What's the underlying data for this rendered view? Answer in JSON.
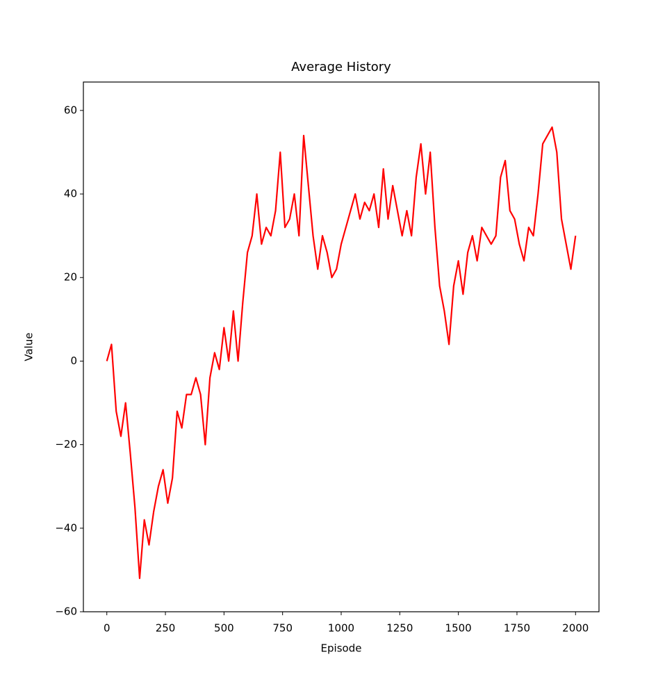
{
  "chart_data": {
    "type": "line",
    "title": "Average History",
    "x_label": "Episode",
    "y_label": "Value",
    "color": "#ff0000",
    "x": [
      0,
      20,
      40,
      60,
      80,
      100,
      120,
      140,
      160,
      180,
      200,
      220,
      240,
      260,
      280,
      300,
      320,
      340,
      360,
      380,
      400,
      420,
      440,
      460,
      480,
      500,
      520,
      540,
      560,
      580,
      600,
      620,
      640,
      660,
      680,
      700,
      720,
      740,
      760,
      780,
      800,
      820,
      840,
      860,
      880,
      900,
      920,
      940,
      960,
      980,
      1000,
      1020,
      1040,
      1060,
      1080,
      1100,
      1120,
      1140,
      1160,
      1180,
      1200,
      1220,
      1240,
      1260,
      1280,
      1300,
      1320,
      1340,
      1360,
      1380,
      1400,
      1420,
      1440,
      1460,
      1480,
      1500,
      1520,
      1540,
      1560,
      1580,
      1600,
      1620,
      1640,
      1660,
      1680,
      1700,
      1720,
      1740,
      1760,
      1780,
      1800,
      1820,
      1840,
      1860,
      1880,
      1900,
      1920,
      1940,
      1960,
      1980,
      2000
    ],
    "values": [
      0,
      4,
      -12,
      -18,
      -10,
      -22,
      -35,
      -52,
      -38,
      -44,
      -36,
      -30,
      -26,
      -34,
      -28,
      -12,
      -16,
      -8,
      -8,
      -4,
      -8,
      -20,
      -4,
      2,
      -2,
      8,
      0,
      12,
      0,
      14,
      26,
      30,
      40,
      28,
      32,
      30,
      36,
      50,
      32,
      34,
      40,
      30,
      54,
      42,
      30,
      22,
      30,
      26,
      20,
      22,
      28,
      32,
      36,
      40,
      34,
      38,
      36,
      40,
      32,
      46,
      34,
      42,
      36,
      30,
      36,
      30,
      44,
      52,
      40,
      50,
      32,
      18,
      12,
      4,
      18,
      24,
      16,
      26,
      30,
      24,
      32,
      30,
      28,
      30,
      44,
      48,
      36,
      34,
      28,
      24,
      32,
      30,
      40,
      52,
      54,
      56,
      50,
      34,
      28,
      22,
      30
    ],
    "xlim": [
      -100,
      2100
    ],
    "ylim": [
      -60,
      66.8
    ],
    "xticks": [
      0,
      250,
      500,
      750,
      1000,
      1250,
      1500,
      1750,
      2000
    ],
    "yticks": [
      {
        "value": -60,
        "label": "−60"
      },
      {
        "value": -40,
        "label": "−40"
      },
      {
        "value": -20,
        "label": "−20"
      },
      0,
      20,
      40,
      60
    ]
  }
}
